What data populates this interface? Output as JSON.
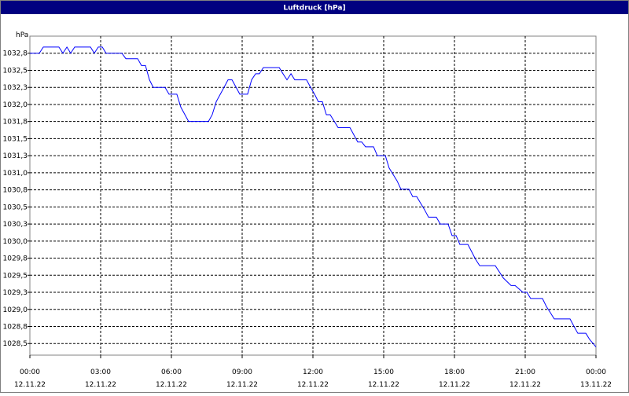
{
  "chart_data": {
    "type": "line",
    "title": "Luftdruck [hPa]",
    "y_label": "hPa",
    "xlim": [
      0,
      24
    ],
    "xticks": [
      {
        "value": 0,
        "label": "00:00",
        "date": "12.11.22"
      },
      {
        "value": 3,
        "label": "03:00",
        "date": "12.11.22"
      },
      {
        "value": 6,
        "label": "06:00",
        "date": "12.11.22"
      },
      {
        "value": 9,
        "label": "09:00",
        "date": "12.11.22"
      },
      {
        "value": 12,
        "label": "12:00",
        "date": "12.11.22"
      },
      {
        "value": 15,
        "label": "15:00",
        "date": "12.11.22"
      },
      {
        "value": 18,
        "label": "18:00",
        "date": "12.11.22"
      },
      {
        "value": 21,
        "label": "21:00",
        "date": "12.11.22"
      },
      {
        "value": 24,
        "label": "00:00",
        "date": "13.11.22"
      }
    ],
    "ylim": [
      1028.33,
      1033.0
    ],
    "yticks": [
      {
        "value": 1032.75,
        "label": "1032,8"
      },
      {
        "value": 1032.5,
        "label": "1032,5"
      },
      {
        "value": 1032.25,
        "label": "1032,3"
      },
      {
        "value": 1032.0,
        "label": "1032,0"
      },
      {
        "value": 1031.75,
        "label": "1031,8"
      },
      {
        "value": 1031.5,
        "label": "1031,5"
      },
      {
        "value": 1031.25,
        "label": "1031,3"
      },
      {
        "value": 1031.0,
        "label": "1031,0"
      },
      {
        "value": 1030.75,
        "label": "1030,8"
      },
      {
        "value": 1030.5,
        "label": "1030,5"
      },
      {
        "value": 1030.25,
        "label": "1030,3"
      },
      {
        "value": 1030.0,
        "label": "1030,0"
      },
      {
        "value": 1029.75,
        "label": "1029,8"
      },
      {
        "value": 1029.5,
        "label": "1029,5"
      },
      {
        "value": 1029.25,
        "label": "1029,3"
      },
      {
        "value": 1029.0,
        "label": "1029,0"
      },
      {
        "value": 1028.75,
        "label": "1028,8"
      },
      {
        "value": 1028.5,
        "label": "1028,5"
      }
    ],
    "grid": true,
    "series": [
      {
        "name": "Luftdruck",
        "color": "#0000ff",
        "x": [
          0,
          0.4,
          0.57,
          0.9,
          1.23,
          1.4,
          1.57,
          1.73,
          1.9,
          2.57,
          2.73,
          2.9,
          3.07,
          3.23,
          3.9,
          4.07,
          4.57,
          4.73,
          4.9,
          5.07,
          5.23,
          5.73,
          5.9,
          6.23,
          6.4,
          6.73,
          7.57,
          7.73,
          7.9,
          8.23,
          8.4,
          8.57,
          8.9,
          9.23,
          9.4,
          9.57,
          9.73,
          9.9,
          10.57,
          10.73,
          10.9,
          11.07,
          11.23,
          11.73,
          11.9,
          12.07,
          12.23,
          12.4,
          12.57,
          12.73,
          13.07,
          13.57,
          13.9,
          14.07,
          14.23,
          14.57,
          14.73,
          15.07,
          15.23,
          15.57,
          15.73,
          16.07,
          16.23,
          16.4,
          16.73,
          16.9,
          17.23,
          17.4,
          17.73,
          17.9,
          18.07,
          18.23,
          18.57,
          18.9,
          19.07,
          19.73,
          19.9,
          20.07,
          20.4,
          20.57,
          20.9,
          21.07,
          21.23,
          21.73,
          21.9,
          22.07,
          22.23,
          22.9,
          23.07,
          23.23,
          23.57,
          23.73,
          24
        ],
        "values": [
          1032.75,
          1032.75,
          1032.84,
          1032.84,
          1032.84,
          1032.75,
          1032.84,
          1032.75,
          1032.84,
          1032.84,
          1032.75,
          1032.84,
          1032.84,
          1032.75,
          1032.75,
          1032.67,
          1032.67,
          1032.57,
          1032.57,
          1032.36,
          1032.25,
          1032.25,
          1032.15,
          1032.15,
          1031.96,
          1031.75,
          1031.75,
          1031.85,
          1032.04,
          1032.25,
          1032.36,
          1032.36,
          1032.15,
          1032.15,
          1032.36,
          1032.45,
          1032.45,
          1032.54,
          1032.54,
          1032.45,
          1032.36,
          1032.45,
          1032.36,
          1032.36,
          1032.25,
          1032.15,
          1032.04,
          1032.04,
          1031.85,
          1031.85,
          1031.66,
          1031.66,
          1031.45,
          1031.45,
          1031.38,
          1031.38,
          1031.25,
          1031.25,
          1031.07,
          1030.88,
          1030.76,
          1030.76,
          1030.65,
          1030.65,
          1030.46,
          1030.35,
          1030.35,
          1030.25,
          1030.25,
          1030.08,
          1030.08,
          1029.95,
          1029.95,
          1029.73,
          1029.64,
          1029.64,
          1029.55,
          1029.46,
          1029.35,
          1029.35,
          1029.25,
          1029.25,
          1029.16,
          1029.16,
          1029.04,
          1028.95,
          1028.86,
          1028.86,
          1028.75,
          1028.65,
          1028.65,
          1028.56,
          1028.45
        ]
      }
    ]
  }
}
